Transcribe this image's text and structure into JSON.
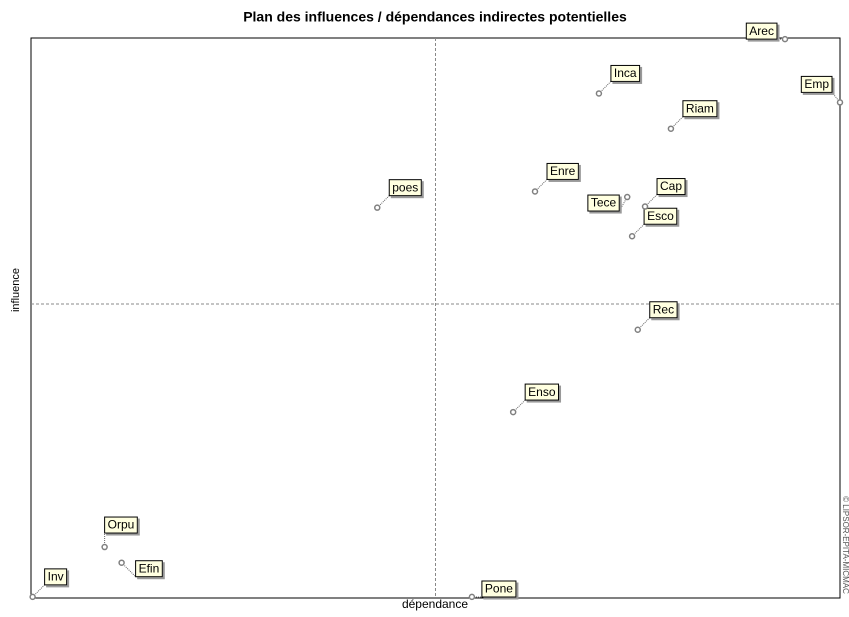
{
  "chart_data": {
    "type": "scatter",
    "title": "Plan des influences / dépendances indirectes potentielles",
    "x_label": "dépendance",
    "y_label": "influence",
    "watermark": "© LIPSOR-EPITA-MICMAC",
    "xlim": [
      0,
      100
    ],
    "ylim": [
      0,
      100
    ],
    "x_divider": 50,
    "y_divider": 52.5,
    "series": [
      {
        "name": "Variables",
        "color": "#808080",
        "labels": [
          "Inv",
          "Orpu",
          "Efin",
          "Pone",
          "Enso",
          "Rec",
          "Esco",
          "poes",
          "Enre",
          "Tece",
          "Cap",
          "Riam",
          "Inca",
          "Arec",
          "Emp"
        ],
        "x": [
          0.2,
          9.1,
          11.2,
          54.5,
          59.6,
          75.0,
          74.3,
          42.8,
          62.3,
          73.7,
          75.9,
          79.1,
          70.2,
          93.2,
          100
        ],
        "values": [
          0.2,
          9.1,
          6.3,
          0.2,
          33.2,
          47.9,
          64.6,
          69.7,
          72.6,
          71.6,
          69.9,
          83.8,
          90.1,
          99.8,
          88.5
        ]
      }
    ]
  }
}
